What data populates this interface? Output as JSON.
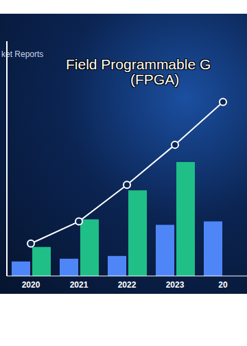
{
  "chart_data": {
    "type": "bar",
    "title": "Field Programmable G",
    "subtitle": "(FPGA)",
    "annotations": [
      "ket Reports"
    ],
    "categories": [
      "2020",
      "2021",
      "2022",
      "2023",
      "20"
    ],
    "series": [
      {
        "color": "#4f86f7",
        "values": [
          21,
          25,
          29,
          74,
          79
        ]
      },
      {
        "color": "#1fbf87",
        "values": [
          42,
          82,
          124,
          165,
          null
        ]
      },
      {
        "type": "line",
        "color": "#ffffff",
        "marker": "circle",
        "values": [
          47,
          79,
          132,
          190,
          252
        ]
      }
    ],
    "ylim": [
      0,
      340
    ],
    "grid": false,
    "tick_labels": "x"
  }
}
